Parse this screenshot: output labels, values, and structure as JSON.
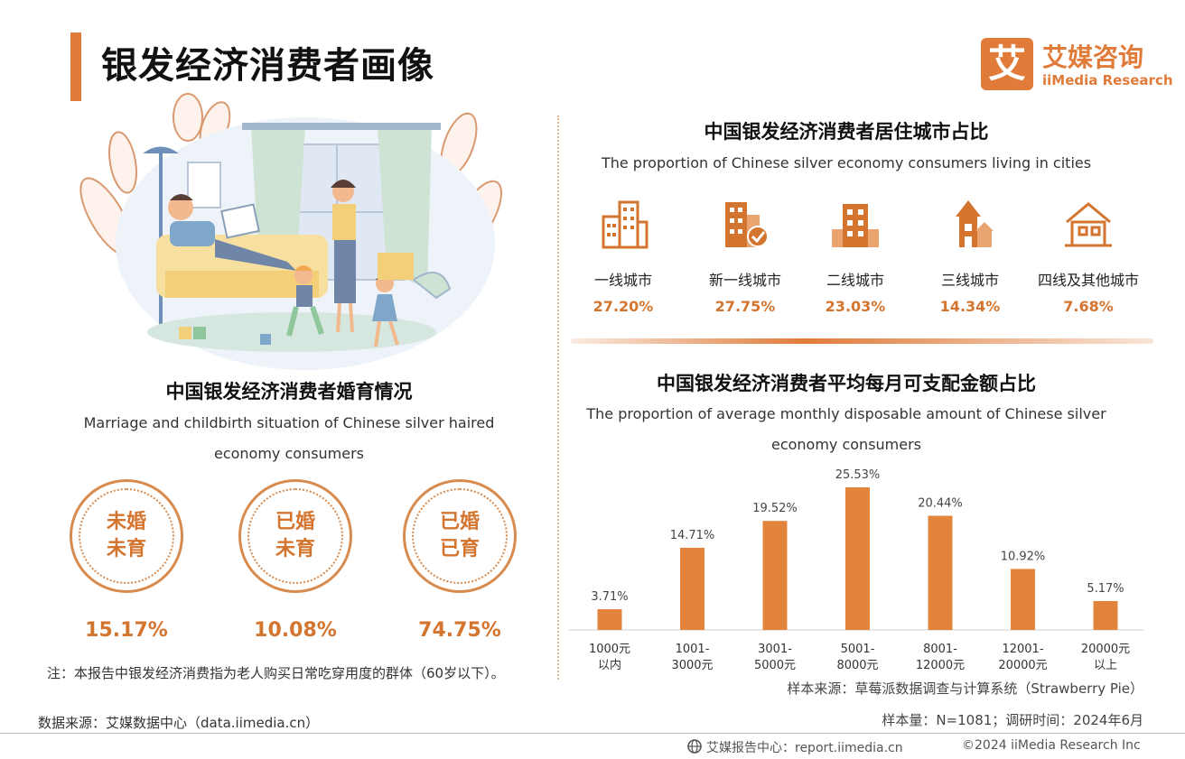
{
  "page": {
    "title": "银发经济消费者画像"
  },
  "logo": {
    "mark": "艾",
    "name_cn": "艾媒咨询",
    "name_en": "iiMedia Research",
    "color": "#e07b39"
  },
  "marriage": {
    "title": "中国银发经济消费者婚育情况",
    "subtitle_line1": "Marriage and childbirth situation of Chinese silver haired",
    "subtitle_line2": "economy consumers",
    "items": [
      {
        "line1": "未婚",
        "line2": "未育",
        "percent": "15.17%"
      },
      {
        "line1": "已婚",
        "line2": "未育",
        "percent": "10.08%"
      },
      {
        "line1": "已婚",
        "line2": "已育",
        "percent": "74.75%"
      }
    ]
  },
  "note": {
    "text": "注：本报告中银发经济消费指为老人购买日常吃穿用度的群体（60岁以下）。",
    "source": "数据来源：艾媒数据中心（data.iimedia.cn）"
  },
  "cities": {
    "title": "中国银发经济消费者居住城市占比",
    "subtitle": "The proportion of Chinese silver economy consumers living in cities",
    "items": [
      {
        "name": "一线城市",
        "percent": "27.20%",
        "icon": "skyscraper-icon"
      },
      {
        "name": "新一线城市",
        "percent": "27.75%",
        "icon": "office-building-check-icon"
      },
      {
        "name": "二线城市",
        "percent": "23.03%",
        "icon": "building-icon"
      },
      {
        "name": "三线城市",
        "percent": "14.34%",
        "icon": "house-tower-icon"
      },
      {
        "name": "四线及其他城市",
        "percent": "7.68%",
        "icon": "house-icon"
      }
    ]
  },
  "spending": {
    "title": "中国银发经济消费者平均每月可支配金额占比",
    "subtitle_line1": "The proportion of average monthly disposable amount of Chinese silver",
    "subtitle_line2": "economy consumers"
  },
  "chart_data": {
    "type": "bar",
    "categories": [
      [
        "1000元",
        "以内"
      ],
      [
        "1001-",
        "3000元"
      ],
      [
        "3001-",
        "5000元"
      ],
      [
        "5001-",
        "8000元"
      ],
      [
        "8001-",
        "12000元"
      ],
      [
        "12001-",
        "20000元"
      ],
      [
        "20000元",
        "以上"
      ]
    ],
    "values": [
      3.71,
      14.71,
      19.52,
      25.53,
      20.44,
      10.92,
      5.17
    ],
    "value_labels": [
      "3.71%",
      "14.71%",
      "19.52%",
      "25.53%",
      "20.44%",
      "10.92%",
      "5.17%"
    ],
    "bar_color": "#e3843c",
    "grid": false
  },
  "sample": {
    "source": "样本来源：草莓派数据调查与计算系统（Strawberry Pie）",
    "size": "样本量：N=1081；调研时间：2024年6月"
  },
  "footer": {
    "center": "艾媒报告中心：report.iimedia.cn",
    "copyright": "©2024  iiMedia Research Inc"
  }
}
